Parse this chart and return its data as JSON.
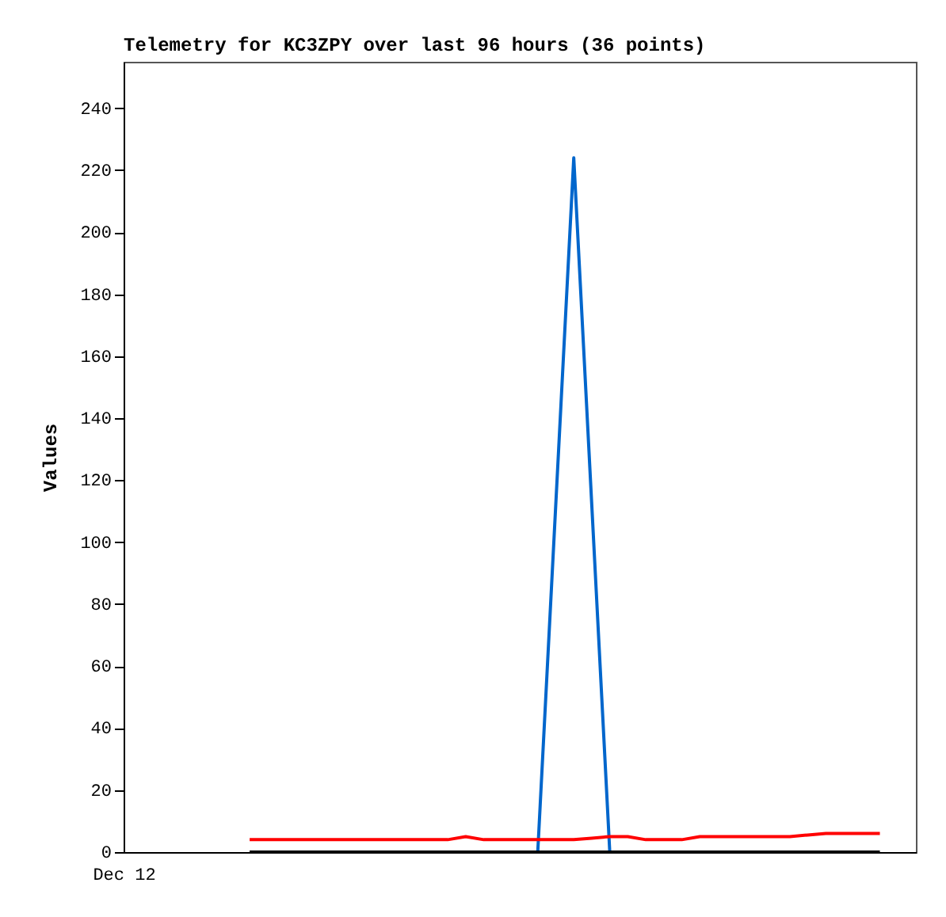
{
  "chart_data": {
    "type": "line",
    "title": "Telemetry for KC3ZPY over last 96 hours (36 points)",
    "ylabel": "Values",
    "annotations": [
      "Dec 12"
    ],
    "categories": [
      null,
      null,
      null,
      null,
      null,
      null,
      null,
      null,
      null,
      null,
      null,
      null,
      null,
      null,
      null,
      null,
      null,
      null,
      null,
      null,
      null,
      null,
      null,
      null,
      null,
      null,
      null,
      null,
      null,
      null,
      null,
      null,
      null,
      null,
      null,
      null,
      null,
      null,
      null,
      null,
      null,
      null,
      null,
      null,
      null
    ],
    "ylim": [
      0,
      255
    ],
    "yticks": [
      0,
      20,
      40,
      60,
      80,
      100,
      120,
      140,
      160,
      180,
      200,
      220,
      240
    ],
    "grid": false,
    "series": [
      {
        "color": "#0066cc",
        "values": [
          null,
          null,
          null,
          null,
          null,
          null,
          null,
          null,
          null,
          null,
          null,
          null,
          null,
          null,
          null,
          null,
          null,
          null,
          null,
          null,
          null,
          null,
          null,
          0,
          112,
          224,
          112,
          0,
          null,
          null,
          null,
          null,
          null,
          null,
          null,
          null,
          null,
          null,
          null,
          null,
          null,
          null,
          null,
          null,
          null
        ]
      },
      {
        "color": "#ff0000",
        "values": [
          null,
          null,
          null,
          null,
          null,
          null,
          null,
          4,
          4,
          4,
          4,
          4,
          4,
          4,
          4,
          4,
          4,
          4,
          4,
          5,
          4,
          4,
          4,
          4,
          4,
          4,
          4.5,
          5,
          5,
          4,
          4,
          4,
          5,
          5,
          5,
          5,
          5,
          5,
          5.5,
          6,
          6,
          6,
          6,
          null,
          null
        ]
      },
      {
        "color": "#000000",
        "values": [
          null,
          null,
          null,
          null,
          null,
          null,
          null,
          0,
          0,
          0,
          0,
          0,
          0,
          0,
          0,
          0,
          0,
          0,
          0,
          0,
          0,
          0,
          0,
          0,
          0,
          0,
          0,
          0,
          0,
          0,
          0,
          0,
          0,
          0,
          0,
          0,
          0,
          0,
          0,
          0,
          0,
          0,
          0,
          null,
          null
        ]
      }
    ]
  }
}
